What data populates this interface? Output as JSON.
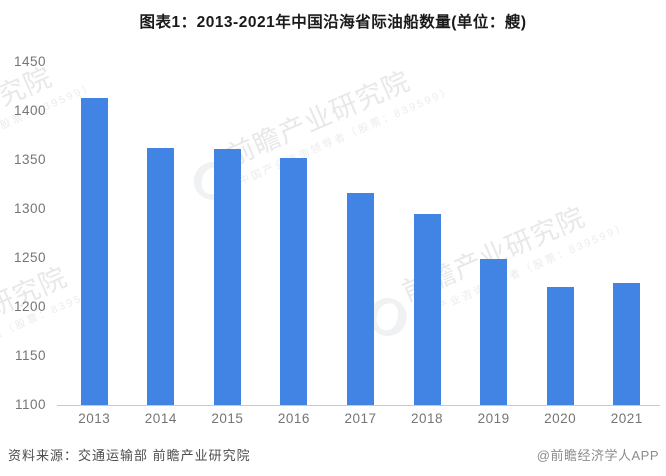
{
  "title": "图表1：2013-2021年中国沿海省际油船数量(单位：艘)",
  "footer": {
    "source": "资料来源：交通运输部 前瞻产业研究院",
    "credit": "@前瞻经济学人APP"
  },
  "watermark": {
    "big": "前瞻产业研究院",
    "small": "中国产业咨询领导者（股票：839599）"
  },
  "colors": {
    "bar": "#4184E4",
    "title": "#1a1a1a",
    "axis_label": "#757575",
    "axis_line": "#c9c9c9",
    "source_text": "#4d4d4d",
    "credit_text": "#8c8c8c",
    "watermark": "#d6d6d6"
  },
  "chart_data": {
    "type": "bar",
    "title": "图表1：2013-2021年中国沿海省际油船数量(单位：艘)",
    "unit": "艘",
    "categories": [
      "2013",
      "2014",
      "2015",
      "2016",
      "2017",
      "2018",
      "2019",
      "2020",
      "2021"
    ],
    "values": [
      1413,
      1362,
      1361,
      1352,
      1316,
      1295,
      1249,
      1220,
      1224
    ],
    "xlabel": "",
    "ylabel": "",
    "ylim": [
      1100,
      1450
    ],
    "yticks": [
      1100,
      1150,
      1200,
      1250,
      1300,
      1350,
      1400,
      1450
    ],
    "grid": false,
    "legend": null,
    "bar_color": "#4184E4"
  }
}
